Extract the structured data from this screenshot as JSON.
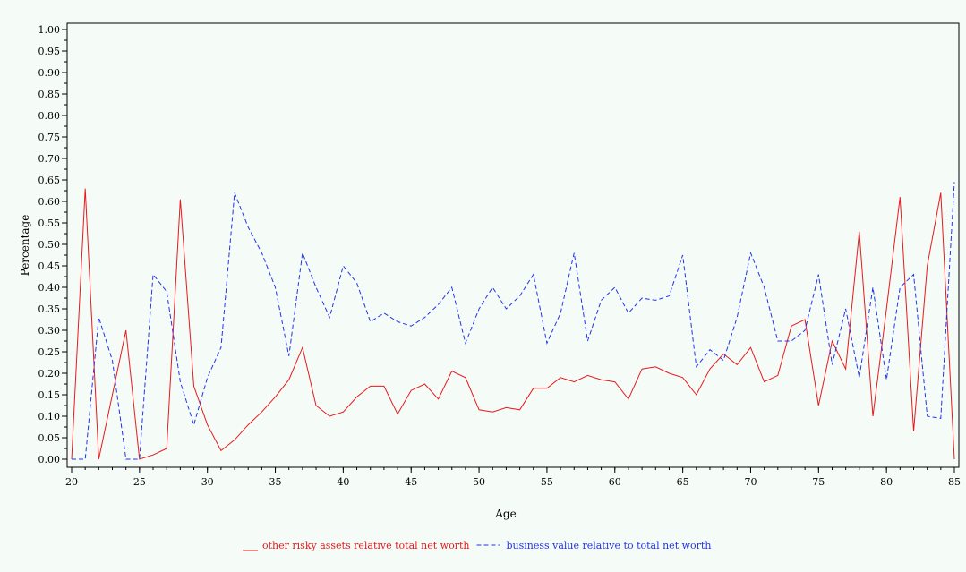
{
  "chart_data": {
    "type": "line",
    "title": "",
    "xlabel": "Age",
    "ylabel": "Percentage",
    "xlim": [
      20,
      85
    ],
    "ylim": [
      0,
      1
    ],
    "x_ticks": [
      "20",
      "25",
      "30",
      "35",
      "40",
      "45",
      "50",
      "55",
      "60",
      "65",
      "70",
      "75",
      "80",
      "85"
    ],
    "y_ticks": [
      "0.00",
      "0.05",
      "0.10",
      "0.15",
      "0.20",
      "0.25",
      "0.30",
      "0.35",
      "0.40",
      "0.45",
      "0.50",
      "0.55",
      "0.60",
      "0.65",
      "0.70",
      "0.75",
      "0.80",
      "0.85",
      "0.90",
      "0.95",
      "1.00"
    ],
    "legend_position": "bottom",
    "x": [
      20,
      21,
      22,
      23,
      24,
      25,
      26,
      27,
      28,
      29,
      30,
      31,
      32,
      33,
      34,
      35,
      36,
      37,
      38,
      39,
      40,
      41,
      42,
      43,
      44,
      45,
      46,
      47,
      48,
      49,
      50,
      51,
      52,
      53,
      54,
      55,
      56,
      57,
      58,
      59,
      60,
      61,
      62,
      63,
      64,
      65,
      66,
      67,
      68,
      69,
      70,
      71,
      72,
      73,
      74,
      75,
      76,
      77,
      78,
      79,
      80,
      81,
      82,
      83,
      84,
      85
    ],
    "series": [
      {
        "name": "other risky assets relative total net worth",
        "color": "#e8191c",
        "dash": "solid",
        "values": [
          0.0,
          0.63,
          0.0,
          0.15,
          0.3,
          0.0,
          0.01,
          0.025,
          0.605,
          0.17,
          0.08,
          0.02,
          0.045,
          0.08,
          0.11,
          0.145,
          0.185,
          0.26,
          0.125,
          0.1,
          0.11,
          0.145,
          0.17,
          0.17,
          0.105,
          0.16,
          0.175,
          0.14,
          0.205,
          0.19,
          0.115,
          0.11,
          0.12,
          0.115,
          0.165,
          0.165,
          0.19,
          0.18,
          0.195,
          0.185,
          0.18,
          0.14,
          0.21,
          0.215,
          0.2,
          0.19,
          0.15,
          0.21,
          0.245,
          0.22,
          0.26,
          0.18,
          0.195,
          0.31,
          0.325,
          0.125,
          0.275,
          0.21,
          0.53,
          0.1,
          0.35,
          0.61,
          0.065,
          0.45,
          0.62,
          0.0
        ]
      },
      {
        "name": "business value relative to total net worth",
        "color": "#2233ee",
        "dash": "dashed",
        "values": [
          0.0,
          0.0,
          0.33,
          0.23,
          0.0,
          0.0,
          0.43,
          0.39,
          0.18,
          0.08,
          0.19,
          0.26,
          0.62,
          0.54,
          0.48,
          0.4,
          0.24,
          0.48,
          0.4,
          0.33,
          0.45,
          0.41,
          0.32,
          0.34,
          0.32,
          0.31,
          0.33,
          0.36,
          0.4,
          0.27,
          0.35,
          0.4,
          0.35,
          0.38,
          0.43,
          0.27,
          0.34,
          0.48,
          0.275,
          0.37,
          0.4,
          0.34,
          0.375,
          0.37,
          0.38,
          0.475,
          0.215,
          0.255,
          0.23,
          0.33,
          0.48,
          0.4,
          0.275,
          0.275,
          0.3,
          0.43,
          0.22,
          0.35,
          0.19,
          0.4,
          0.185,
          0.4,
          0.43,
          0.1,
          0.095,
          0.645
        ]
      }
    ]
  }
}
